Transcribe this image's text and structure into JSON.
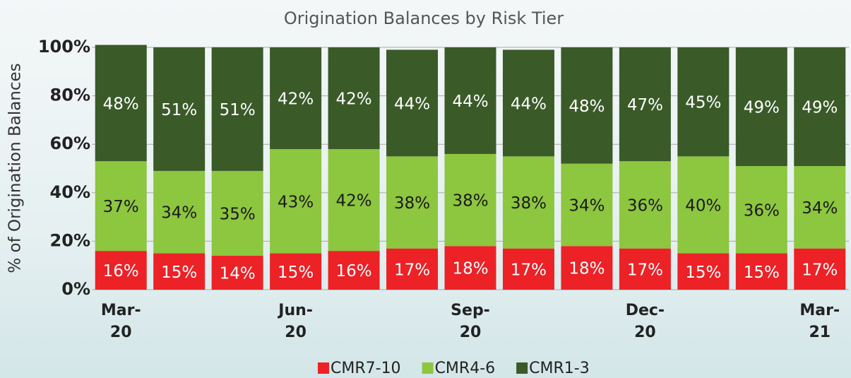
{
  "chart_data": {
    "type": "stacked_bar",
    "title": "Origination Balances by Risk Tier",
    "y_label": "% of Origination Balances",
    "categories": [
      "Mar-\n20",
      null,
      null,
      "Jun-\n20",
      null,
      null,
      "Sep-\n20",
      null,
      null,
      "Dec-\n20",
      null,
      null,
      "Mar-\n21"
    ],
    "series": [
      {
        "name": "CMR7-10",
        "color": "#ec2227",
        "text_color": "#ffffff",
        "values": [
          16,
          15,
          14,
          15,
          16,
          17,
          18,
          17,
          18,
          17,
          15,
          15,
          17
        ],
        "value_labels": [
          "16%",
          "15%",
          "14%",
          "15%",
          "16%",
          "17%",
          "18%",
          "17%",
          "18%",
          "17%",
          "15%",
          "15%",
          "17%"
        ]
      },
      {
        "name": "CMR4-6",
        "color": "#8dc63f",
        "text_color": "#1a1a1a",
        "values": [
          37,
          34,
          35,
          43,
          42,
          38,
          38,
          38,
          34,
          36,
          40,
          36,
          34
        ],
        "value_labels": [
          "37%",
          "34%",
          "35%",
          "43%",
          "42%",
          "38%",
          "38%",
          "38%",
          "34%",
          "36%",
          "40%",
          "36%",
          "34%"
        ]
      },
      {
        "name": "CMR1-3",
        "color": "#3a5a28",
        "text_color": "#ffffff",
        "values": [
          48,
          51,
          51,
          42,
          42,
          44,
          44,
          44,
          48,
          47,
          45,
          49,
          49
        ],
        "value_labels": [
          "48%",
          "51%",
          "51%",
          "42%",
          "42%",
          "44%",
          "44%",
          "44%",
          "48%",
          "47%",
          "45%",
          "49%",
          "49%"
        ]
      }
    ],
    "ylim": [
      0,
      100
    ],
    "yticks": [
      {
        "value": 0,
        "label": "0%"
      },
      {
        "value": 20,
        "label": "20%"
      },
      {
        "value": 40,
        "label": "40%"
      },
      {
        "value": 60,
        "label": "60%"
      },
      {
        "value": 80,
        "label": "80%"
      },
      {
        "value": 100,
        "label": "100%"
      }
    ],
    "grid": true
  }
}
